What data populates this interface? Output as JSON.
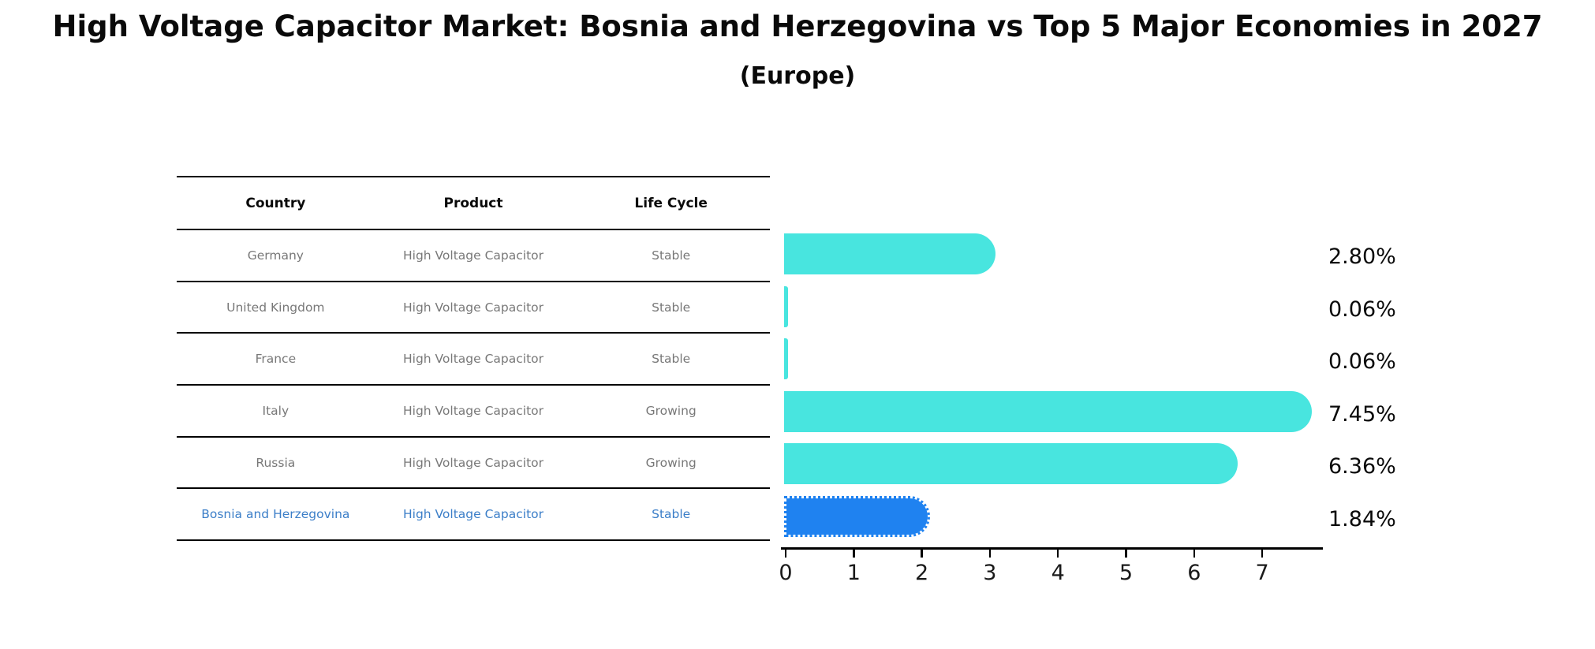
{
  "title": "High Voltage Capacitor Market: Bosnia and Herzegovina vs Top 5 Major Economies in 2027",
  "subtitle": "(Europe)",
  "table": {
    "headers": [
      "Country",
      "Product",
      "Life Cycle"
    ],
    "rows": [
      {
        "country": "Germany",
        "product": "High Voltage Capacitor",
        "life_cycle": "Stable"
      },
      {
        "country": "United Kingdom",
        "product": "High Voltage Capacitor",
        "life_cycle": "Stable"
      },
      {
        "country": "France",
        "product": "High Voltage Capacitor",
        "life_cycle": "Stable"
      },
      {
        "country": "Italy",
        "product": "High Voltage Capacitor",
        "life_cycle": "Growing"
      },
      {
        "country": "Russia",
        "product": "High Voltage Capacitor",
        "life_cycle": "Growing"
      },
      {
        "country": "Bosnia and Herzegovina",
        "product": "High Voltage Capacitor",
        "life_cycle": "Stable"
      }
    ],
    "highlight_row_index": 5
  },
  "chart_data": {
    "type": "bar",
    "orientation": "horizontal",
    "categories": [
      "Germany",
      "United Kingdom",
      "France",
      "Italy",
      "Russia",
      "Bosnia and Herzegovina"
    ],
    "values": [
      2.8,
      0.06,
      0.06,
      7.45,
      6.36,
      1.84
    ],
    "value_labels": [
      "2.80%",
      "0.06%",
      "0.06%",
      "7.45%",
      "6.36%",
      "1.84%"
    ],
    "highlight_index": 5,
    "xlabel": "",
    "ylabel": "",
    "xticks": [
      0,
      1,
      2,
      3,
      4,
      5,
      6,
      7
    ],
    "xlim": [
      0,
      7.92
    ],
    "grid": false,
    "legend_position": "none",
    "bar_style": "rounded-right-cap, highlight bar has dotted edge"
  },
  "colors": {
    "bar_turquoise": "#48E5DF",
    "bar_highlight_blue": "#1F82F0",
    "highlight_text_blue": "#3B7EC8",
    "table_text_gray": "#787878",
    "line_black": "#000000"
  }
}
